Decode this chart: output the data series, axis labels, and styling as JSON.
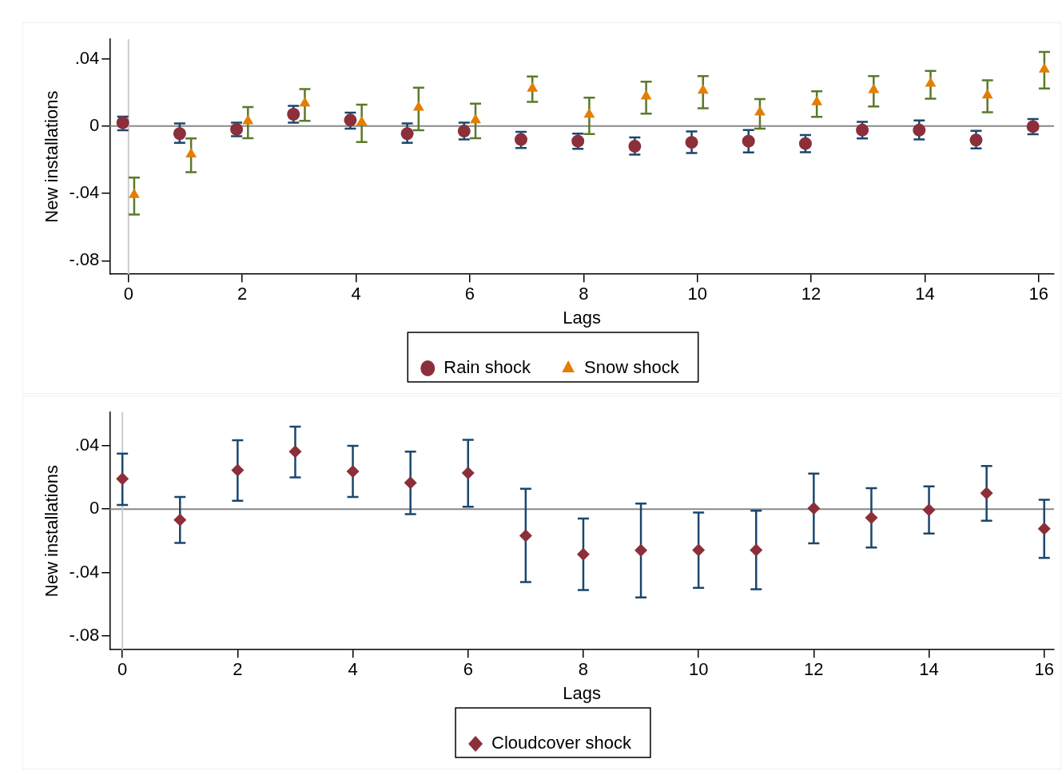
{
  "chart_data": [
    {
      "type": "scatter",
      "xlabel": "Lags",
      "ylabel": "New installations",
      "xlim": [
        -0.33,
        16.27
      ],
      "ylim": [
        -0.088,
        0.0516
      ],
      "xticks": [
        0,
        2,
        4,
        6,
        8,
        10,
        12,
        14,
        16
      ],
      "yticks": [
        {
          "value": -0.08,
          "label": "-.08"
        },
        {
          "value": -0.04,
          "label": "-.04"
        },
        0,
        {
          "value": 0.04,
          "label": ".04"
        }
      ],
      "grid": false,
      "legend": "bottom",
      "ref_lines": [
        {
          "axis": "y",
          "value": 0,
          "color": "#888888"
        },
        {
          "axis": "x",
          "value": 0,
          "color": "#cccccc"
        }
      ],
      "series": [
        {
          "name": "Rain shock",
          "color": "#8b2f3a",
          "marker": "circle",
          "x": [
            -0.1,
            0.9,
            1.9,
            2.9,
            3.9,
            4.9,
            5.9,
            6.9,
            7.9,
            8.9,
            9.9,
            10.9,
            11.9,
            12.9,
            13.9,
            14.9,
            15.9
          ],
          "values": [
            0.002,
            -0.0045,
            -0.002,
            0.007,
            0.0035,
            -0.0045,
            -0.003,
            -0.008,
            -0.009,
            -0.012,
            -0.0097,
            -0.009,
            -0.0104,
            -0.0024,
            -0.0024,
            -0.0083,
            -0.0003
          ],
          "errors": [
            [
              -0.0025,
              0.0056
            ],
            [
              -0.01,
              0.0015
            ],
            [
              -0.006,
              0.002
            ],
            [
              0.002,
              0.012
            ],
            [
              -0.0015,
              0.008
            ],
            [
              -0.01,
              0.0015
            ],
            [
              -0.008,
              0.002
            ],
            [
              -0.013,
              -0.0035
            ],
            [
              -0.0135,
              -0.0045
            ],
            [
              -0.017,
              -0.0068
            ],
            [
              -0.016,
              -0.0032
            ],
            [
              -0.0157,
              -0.0024
            ],
            [
              -0.0155,
              -0.0053
            ],
            [
              -0.0074,
              0.0025
            ],
            [
              -0.0079,
              0.0033
            ],
            [
              -0.0133,
              -0.0028
            ],
            [
              -0.0049,
              0.0042
            ]
          ]
        },
        {
          "name": "Snow shock",
          "color": "#e37e00",
          "marker": "triangle",
          "x": [
            0.1,
            1.1,
            2.1,
            3.1,
            4.1,
            5.1,
            6.1,
            7.1,
            8.1,
            9.1,
            10.1,
            11.1,
            12.1,
            13.1,
            14.1,
            15.1,
            16.1
          ],
          "values": [
            -0.0408,
            -0.0167,
            0.003,
            0.0135,
            0.0023,
            0.011,
            0.0035,
            0.0223,
            0.0069,
            0.0177,
            0.0211,
            0.0082,
            0.0142,
            0.0215,
            0.0253,
            0.0183,
            0.0337
          ],
          "errors": [
            [
              -0.0526,
              -0.0306
            ],
            [
              -0.0274,
              -0.0074
            ],
            [
              -0.0072,
              0.0113
            ],
            [
              0.0031,
              0.0219
            ],
            [
              -0.0095,
              0.0127
            ],
            [
              -0.0025,
              0.0228
            ],
            [
              -0.0072,
              0.0133
            ],
            [
              0.0143,
              0.0294
            ],
            [
              -0.0047,
              0.0168
            ],
            [
              0.0073,
              0.0263
            ],
            [
              0.0105,
              0.0297
            ],
            [
              -0.0015,
              0.016
            ],
            [
              0.0054,
              0.0206
            ],
            [
              0.0116,
              0.0297
            ],
            [
              0.0162,
              0.0327
            ],
            [
              0.0082,
              0.0272
            ],
            [
              0.0223,
              0.044
            ]
          ]
        }
      ]
    },
    {
      "type": "scatter",
      "xlabel": "Lags",
      "ylabel": "New installations",
      "xlim": [
        -0.22,
        16.17
      ],
      "ylim": [
        -0.0886,
        0.061
      ],
      "xticks": [
        0,
        2,
        4,
        6,
        8,
        10,
        12,
        14,
        16
      ],
      "yticks": [
        {
          "value": -0.08,
          "label": "-.08"
        },
        {
          "value": -0.04,
          "label": "-.04"
        },
        0,
        {
          "value": 0.04,
          "label": ".04"
        }
      ],
      "grid": false,
      "legend": "bottom",
      "ref_lines": [
        {
          "axis": "y",
          "value": 0,
          "color": "#888888"
        },
        {
          "axis": "x",
          "value": 0,
          "color": "#cccccc"
        }
      ],
      "series": [
        {
          "name": "Cloudcover shock",
          "color": "#8b2f3a",
          "marker": "diamond",
          "x": [
            0,
            1,
            2,
            3,
            4,
            5,
            6,
            7,
            8,
            9,
            10,
            11,
            12,
            13,
            14,
            15,
            16
          ],
          "values": [
            0.0191,
            -0.0068,
            0.0245,
            0.0362,
            0.0238,
            0.0166,
            0.0227,
            -0.0168,
            -0.0285,
            -0.026,
            -0.0258,
            -0.0258,
            0.0005,
            -0.0054,
            -0.0005,
            0.01,
            -0.0124
          ],
          "errors": [
            [
              0.0026,
              0.035
            ],
            [
              -0.0213,
              0.0076
            ],
            [
              0.0053,
              0.0434
            ],
            [
              0.02,
              0.052
            ],
            [
              0.0076,
              0.0398
            ],
            [
              -0.0032,
              0.0362
            ],
            [
              0.0015,
              0.0436
            ],
            [
              -0.046,
              0.0128
            ],
            [
              -0.051,
              -0.0059
            ],
            [
              -0.0557,
              0.0035
            ],
            [
              -0.0496,
              -0.0022
            ],
            [
              -0.0505,
              -0.001
            ],
            [
              -0.0215,
              0.0224
            ],
            [
              -0.0242,
              0.0132
            ],
            [
              -0.0154,
              0.0143
            ],
            [
              -0.0073,
              0.0272
            ],
            [
              -0.0308,
              0.0059
            ]
          ]
        }
      ]
    }
  ]
}
